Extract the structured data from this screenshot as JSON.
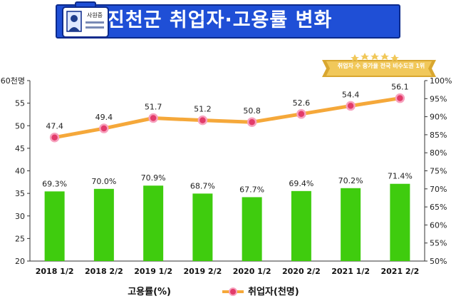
{
  "title": "진천군 취업자·고용률 변화",
  "badge_text": "사원증",
  "award_text": "취업자 수 증가율 전국 비수도권 1위",
  "colors": {
    "banner": "#1f4fd6",
    "bar": "#3fcc0e",
    "line": "#f5a83a",
    "marker": "#e23b6a"
  },
  "chart_data": {
    "type": "bar+line",
    "categories": [
      "2018 1/2",
      "2018 2/2",
      "2019 1/2",
      "2019 2/2",
      "2020 1/2",
      "2020 2/2",
      "2021 1/2",
      "2021 2/2"
    ],
    "series": [
      {
        "name": "고용률(%)",
        "type": "bar",
        "axis": "right",
        "values": [
          69.3,
          70.0,
          70.9,
          68.7,
          67.7,
          69.4,
          70.2,
          71.4
        ],
        "labels": [
          "69.3%",
          "70.0%",
          "70.9%",
          "68.7%",
          "67.7%",
          "69.4%",
          "70.2%",
          "71.4%"
        ]
      },
      {
        "name": "취업자(천명)",
        "type": "line",
        "axis": "left",
        "values": [
          47.4,
          49.4,
          51.7,
          51.2,
          50.8,
          52.6,
          54.4,
          56.1
        ],
        "labels": [
          "47.4",
          "49.4",
          "51.7",
          "51.2",
          "50.8",
          "52.6",
          "54.4",
          "56.1"
        ]
      }
    ],
    "y_left": {
      "min": 20,
      "max": 60,
      "ticks": [
        "20",
        "25",
        "30",
        "35",
        "40",
        "45",
        "50",
        "55",
        "60천명"
      ],
      "values": [
        20,
        25,
        30,
        35,
        40,
        45,
        50,
        55,
        60
      ]
    },
    "y_right": {
      "min": 50,
      "max": 100,
      "ticks": [
        "50%",
        "55%",
        "60%",
        "65%",
        "70%",
        "75%",
        "80%",
        "85%",
        "90%",
        "95%",
        "100%"
      ],
      "values": [
        50,
        55,
        60,
        65,
        70,
        75,
        80,
        85,
        90,
        95,
        100
      ]
    },
    "grid": false,
    "legend": "bottom"
  }
}
